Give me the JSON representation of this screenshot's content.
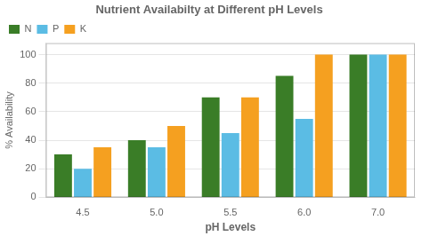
{
  "chart_data": {
    "type": "bar",
    "title": "Nutrient Availabilty at Different pH Levels",
    "xlabel": "pH Levels",
    "ylabel": "% Availability",
    "categories": [
      "4.5",
      "5.0",
      "5.5",
      "6.0",
      "7.0"
    ],
    "series": [
      {
        "name": "N",
        "color": "#3a7d27",
        "values": [
          30,
          40,
          70,
          85,
          100
        ]
      },
      {
        "name": "P",
        "color": "#5bbce4",
        "values": [
          20,
          35,
          45,
          55,
          100
        ]
      },
      {
        "name": "K",
        "color": "#f5a020",
        "values": [
          35,
          50,
          70,
          100,
          100
        ]
      }
    ],
    "ylim": [
      0,
      108
    ],
    "yticks": [
      0,
      20,
      40,
      60,
      80,
      100
    ],
    "grid": true,
    "legend": "upper left"
  }
}
